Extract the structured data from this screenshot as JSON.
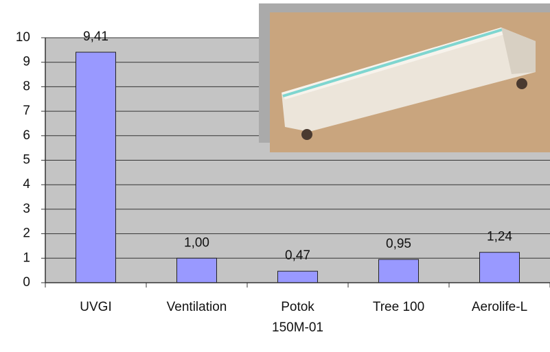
{
  "chart_data": {
    "type": "bar",
    "categories": [
      "UVGI",
      "Ventilation",
      "Potok 150M-01",
      "Tree 100",
      "Aerolife-L"
    ],
    "values": [
      9.41,
      1.0,
      0.47,
      0.95,
      1.24
    ],
    "value_labels": [
      "9,41",
      "1,00",
      "0,47",
      "0,95",
      "1,24"
    ],
    "color": "#9999ff",
    "ylim": [
      0,
      10
    ],
    "yticks": [
      0,
      1,
      2,
      3,
      4,
      5,
      6,
      7,
      8,
      9,
      10
    ],
    "grid": true
  }
}
